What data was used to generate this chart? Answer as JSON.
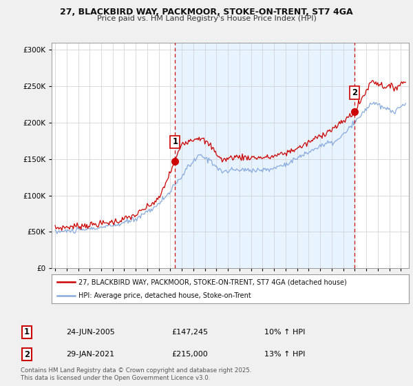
{
  "title_line1": "27, BLACKBIRD WAY, PACKMOOR, STOKE-ON-TRENT, ST7 4GA",
  "title_line2": "Price paid vs. HM Land Registry's House Price Index (HPI)",
  "background_color": "#f0f0f0",
  "plot_bg_color": "#ffffff",
  "shade_color": "#ddeeff",
  "sale1_date": "24-JUN-2005",
  "sale1_price": 147245,
  "sale1_hpi": "10% ↑ HPI",
  "sale2_date": "29-JAN-2021",
  "sale2_price": 215000,
  "sale2_hpi": "13% ↑ HPI",
  "legend1": "27, BLACKBIRD WAY, PACKMOOR, STOKE-ON-TRENT, ST7 4GA (detached house)",
  "legend2": "HPI: Average price, detached house, Stoke-on-Trent",
  "footnote": "Contains HM Land Registry data © Crown copyright and database right 2025.\nThis data is licensed under the Open Government Licence v3.0.",
  "red_color": "#cc0000",
  "blue_color": "#88aadd",
  "dashed_color": "#cc0000",
  "ylim_min": 0,
  "ylim_max": 310000,
  "yticks": [
    0,
    50000,
    100000,
    150000,
    200000,
    250000,
    300000
  ],
  "start_year": 1995,
  "end_year": 2025,
  "hpi_anchors_x": [
    1995.0,
    1997.0,
    1999.0,
    2000.5,
    2002.0,
    2004.0,
    2005.5,
    2006.5,
    2007.5,
    2008.5,
    2009.5,
    2010.5,
    2012.0,
    2013.5,
    2015.0,
    2016.5,
    2018.0,
    2019.5,
    2021.0,
    2022.5,
    2023.5,
    2024.5,
    2025.5
  ],
  "hpi_anchors_y": [
    50000,
    52000,
    56000,
    60000,
    68000,
    88000,
    115000,
    138000,
    155000,
    148000,
    132000,
    135000,
    135000,
    135000,
    143000,
    155000,
    168000,
    175000,
    200000,
    228000,
    220000,
    215000,
    228000
  ],
  "red_anchors_x": [
    1995.0,
    1997.0,
    1999.0,
    2000.5,
    2002.0,
    2004.0,
    2005.42,
    2006.0,
    2007.5,
    2008.5,
    2009.5,
    2010.5,
    2012.0,
    2013.5,
    2015.0,
    2016.5,
    2018.0,
    2019.5,
    2021.0,
    2022.5,
    2023.5,
    2024.5,
    2025.5
  ],
  "red_anchors_y": [
    55000,
    58000,
    61000,
    65000,
    73000,
    95000,
    147245,
    172000,
    180000,
    168000,
    148000,
    153000,
    152000,
    152000,
    158000,
    168000,
    182000,
    195000,
    215000,
    258000,
    250000,
    248000,
    258000
  ]
}
